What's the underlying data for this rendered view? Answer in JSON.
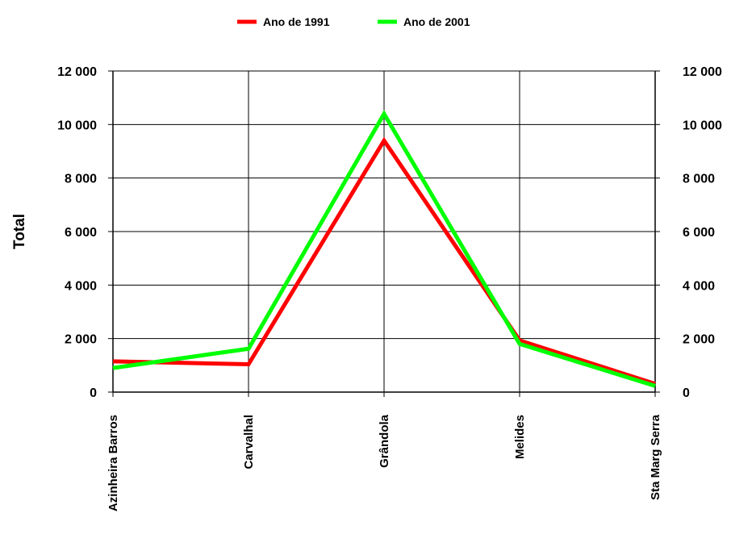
{
  "chart_data": {
    "type": "line",
    "categories": [
      "Azinheira Barros",
      "Carvalhal",
      "Grândola",
      "Melides",
      "Sta Marg Serra"
    ],
    "series": [
      {
        "name": "Ano de 1991",
        "color": "#ff0000",
        "values": [
          1150,
          1040,
          9400,
          1930,
          310
        ]
      },
      {
        "name": "Ano de 2001",
        "color": "#00ff00",
        "values": [
          900,
          1620,
          10400,
          1800,
          230
        ]
      }
    ],
    "ylabel": "Total",
    "ylim": [
      0,
      12000
    ],
    "yticks": [
      "0",
      "2 000",
      "4 000",
      "6 000",
      "8 000",
      "10 000",
      "12 000"
    ],
    "ytick_values": [
      0,
      2000,
      4000,
      6000,
      8000,
      10000,
      12000
    ],
    "secondary_y_axis": true,
    "grid": true,
    "legend_position": "top"
  }
}
